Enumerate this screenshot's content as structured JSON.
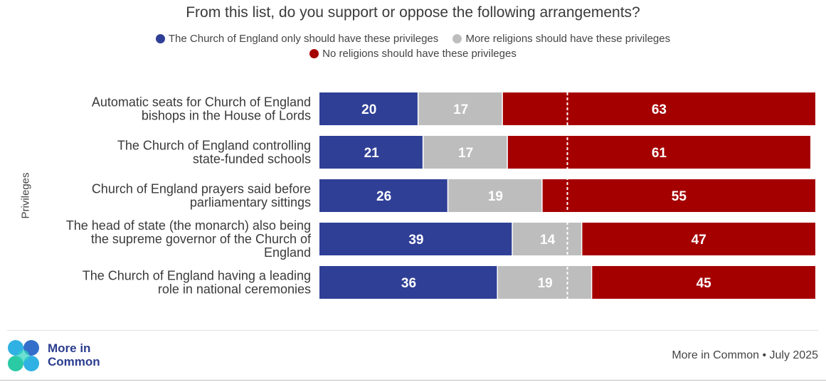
{
  "chart_data": {
    "type": "bar",
    "orientation": "horizontal",
    "stacked": true,
    "title": "From this list, do you support or oppose the following arrangements?",
    "ylabel": "Privileges",
    "xlim": [
      0,
      100
    ],
    "legend_position": "top",
    "categories": [
      [
        "Automatic seats for Church of England",
        "bishops in the House of Lords"
      ],
      [
        "The Church of England controlling",
        "state-funded schools"
      ],
      [
        "Church of England prayers said before",
        "parliamentary sittings"
      ],
      [
        "The head of state (the monarch) also being",
        "the supreme governor of the Church of",
        "England"
      ],
      [
        "The Church of England having a leading",
        "role in national ceremonies"
      ]
    ],
    "series": [
      {
        "name": "The Church of England only should have these privileges",
        "color": "#2f3f96",
        "values": [
          20,
          21,
          26,
          39,
          36
        ]
      },
      {
        "name": "More religions should have these privileges",
        "color": "#bdbdbd",
        "values": [
          17,
          17,
          19,
          14,
          19
        ]
      },
      {
        "name": "No religions should have these privileges",
        "color": "#a50000",
        "values": [
          63,
          61,
          55,
          47,
          45
        ]
      }
    ],
    "reference_line": {
      "value": 50,
      "style": "dashed"
    }
  },
  "logo": {
    "text_line1": "More in",
    "text_line2": "Common"
  },
  "source": "More in Common • July 2025"
}
